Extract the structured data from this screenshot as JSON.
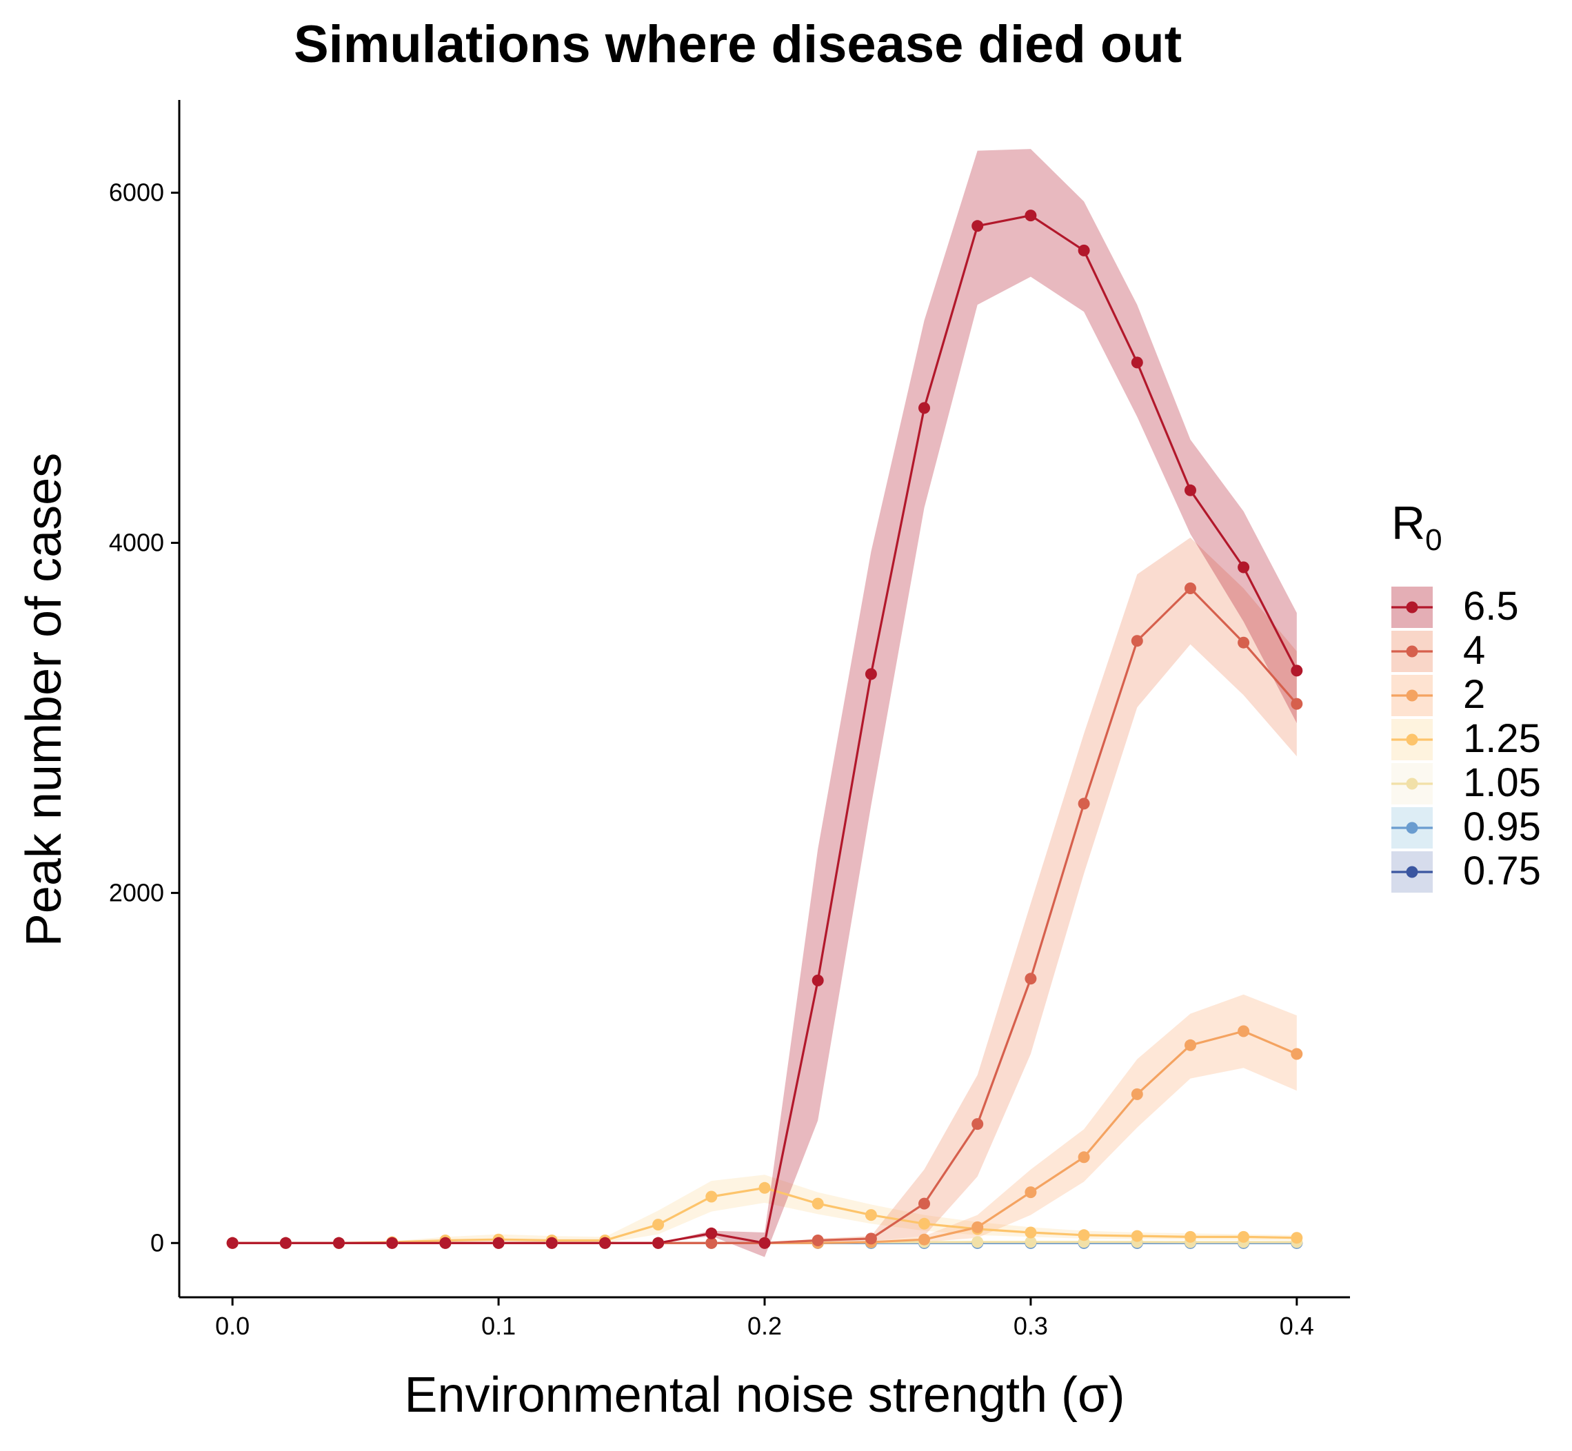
{
  "chart_data": {
    "type": "line",
    "title": "Simulations where disease died out",
    "xlabel": "Environmental noise strength (σ)",
    "ylabel": "Peak number of cases",
    "xlim": [
      -0.02,
      0.42
    ],
    "ylim": [
      -310,
      6530
    ],
    "x_ticks": [
      0.0,
      0.1,
      0.2,
      0.3,
      0.4
    ],
    "x_tick_labels": [
      "0.0",
      "0.1",
      "0.2",
      "0.3",
      "0.4"
    ],
    "y_ticks": [
      0,
      2000,
      4000,
      6000
    ],
    "y_tick_labels": [
      "0",
      "2000",
      "4000",
      "6000"
    ],
    "grid": false,
    "legend_position": "right",
    "legend_title": {
      "main": "R",
      "subscript": "0"
    },
    "x": [
      0.0,
      0.02,
      0.04,
      0.06,
      0.08,
      0.1,
      0.12,
      0.14,
      0.16,
      0.18,
      0.2,
      0.22,
      0.24,
      0.26,
      0.28,
      0.3,
      0.32,
      0.34,
      0.36,
      0.38,
      0.4
    ],
    "series": [
      {
        "name": "6.5",
        "line_color": "#b2182b",
        "band_color": "#b2182b",
        "values": [
          0,
          0,
          0,
          0,
          0,
          0,
          0,
          0,
          0,
          55,
          0,
          1500,
          3250,
          4770,
          5810,
          5870,
          5670,
          5030,
          4300,
          3860,
          3270
        ],
        "upper": [
          0,
          0,
          0,
          0,
          0,
          0,
          0,
          0,
          0,
          70,
          60,
          2250,
          3950,
          5270,
          6240,
          6250,
          5950,
          5360,
          4590,
          4180,
          3600
        ],
        "lower": [
          0,
          0,
          0,
          0,
          0,
          0,
          0,
          0,
          0,
          40,
          -80,
          700,
          2500,
          4200,
          5360,
          5520,
          5320,
          4720,
          4050,
          3550,
          2970
        ]
      },
      {
        "name": "4",
        "line_color": "#d6604d",
        "band_color": "#ef8a62",
        "values": [
          0,
          0,
          0,
          0,
          0,
          0,
          0,
          0,
          0,
          0,
          0,
          15,
          25,
          225,
          680,
          1510,
          2510,
          3440,
          3740,
          3430,
          3080
        ],
        "upper": [
          0,
          0,
          0,
          0,
          0,
          0,
          0,
          0,
          0,
          0,
          0,
          25,
          40,
          420,
          960,
          1940,
          2910,
          3820,
          4030,
          3740,
          3380
        ],
        "lower": [
          0,
          0,
          0,
          0,
          0,
          0,
          0,
          0,
          0,
          0,
          0,
          5,
          10,
          40,
          380,
          1080,
          2110,
          3060,
          3420,
          3130,
          2780
        ]
      },
      {
        "name": "2",
        "line_color": "#f4a361",
        "band_color": "#fdb07a",
        "values": [
          0,
          0,
          0,
          0,
          0,
          0,
          0,
          0,
          0,
          0,
          0,
          0,
          5,
          20,
          90,
          290,
          490,
          850,
          1130,
          1210,
          1080
        ],
        "upper": [
          0,
          0,
          0,
          0,
          0,
          0,
          0,
          0,
          0,
          0,
          0,
          0,
          10,
          40,
          160,
          420,
          650,
          1050,
          1310,
          1420,
          1300
        ],
        "lower": [
          0,
          0,
          0,
          0,
          0,
          0,
          0,
          0,
          0,
          0,
          0,
          0,
          0,
          5,
          30,
          160,
          350,
          660,
          940,
          1000,
          870
        ]
      },
      {
        "name": "1.25",
        "line_color": "#fdc46b",
        "band_color": "#fddca0",
        "values": [
          0,
          0,
          0,
          5,
          15,
          20,
          15,
          15,
          105,
          265,
          315,
          225,
          160,
          110,
          80,
          60,
          45,
          40,
          35,
          35,
          30
        ],
        "upper": [
          0,
          0,
          0,
          10,
          35,
          50,
          40,
          35,
          185,
          355,
          390,
          290,
          220,
          160,
          120,
          90,
          70,
          60,
          55,
          50,
          45
        ],
        "lower": [
          0,
          0,
          0,
          0,
          0,
          0,
          0,
          0,
          50,
          180,
          230,
          165,
          110,
          70,
          45,
          35,
          25,
          22,
          20,
          18,
          15
        ]
      },
      {
        "name": "1.05",
        "line_color": "#f1e0a8",
        "band_color": "#f5efd6",
        "values": [
          0,
          0,
          0,
          0,
          0,
          0,
          0,
          0,
          0,
          0,
          0,
          2,
          4,
          5,
          6,
          6,
          6,
          6,
          5,
          5,
          5
        ],
        "upper": [
          0,
          0,
          0,
          0,
          0,
          0,
          0,
          0,
          0,
          0,
          0,
          5,
          8,
          10,
          12,
          12,
          12,
          12,
          10,
          10,
          10
        ],
        "lower": [
          0,
          0,
          0,
          0,
          0,
          0,
          0,
          0,
          0,
          0,
          0,
          0,
          0,
          1,
          1,
          1,
          1,
          1,
          1,
          1,
          1
        ]
      },
      {
        "name": "0.95",
        "line_color": "#6a9ccf",
        "band_color": "#9ecae1",
        "values": [
          0,
          0,
          0,
          0,
          0,
          0,
          0,
          0,
          0,
          0,
          0,
          0,
          0,
          0,
          0,
          0,
          0,
          0,
          0,
          0,
          0
        ],
        "upper": [
          0,
          0,
          0,
          0,
          0,
          0,
          0,
          0,
          0,
          0,
          0,
          0,
          0,
          0,
          0,
          0,
          0,
          0,
          0,
          0,
          0
        ],
        "lower": [
          0,
          0,
          0,
          0,
          0,
          0,
          0,
          0,
          0,
          0,
          0,
          0,
          0,
          0,
          0,
          0,
          0,
          0,
          0,
          0,
          0
        ]
      },
      {
        "name": "0.75",
        "line_color": "#3b56a0",
        "band_color": "#8a9cc8",
        "values": [
          0,
          0,
          0,
          0,
          0,
          0,
          0,
          0,
          0,
          0,
          0,
          0,
          0,
          0,
          0,
          0,
          0,
          0,
          0,
          0,
          0
        ],
        "upper": [
          0,
          0,
          0,
          0,
          0,
          0,
          0,
          0,
          0,
          0,
          0,
          0,
          0,
          0,
          0,
          0,
          0,
          0,
          0,
          0,
          0
        ],
        "lower": [
          0,
          0,
          0,
          0,
          0,
          0,
          0,
          0,
          0,
          0,
          0,
          0,
          0,
          0,
          0,
          0,
          0,
          0,
          0,
          0,
          0
        ]
      }
    ]
  }
}
